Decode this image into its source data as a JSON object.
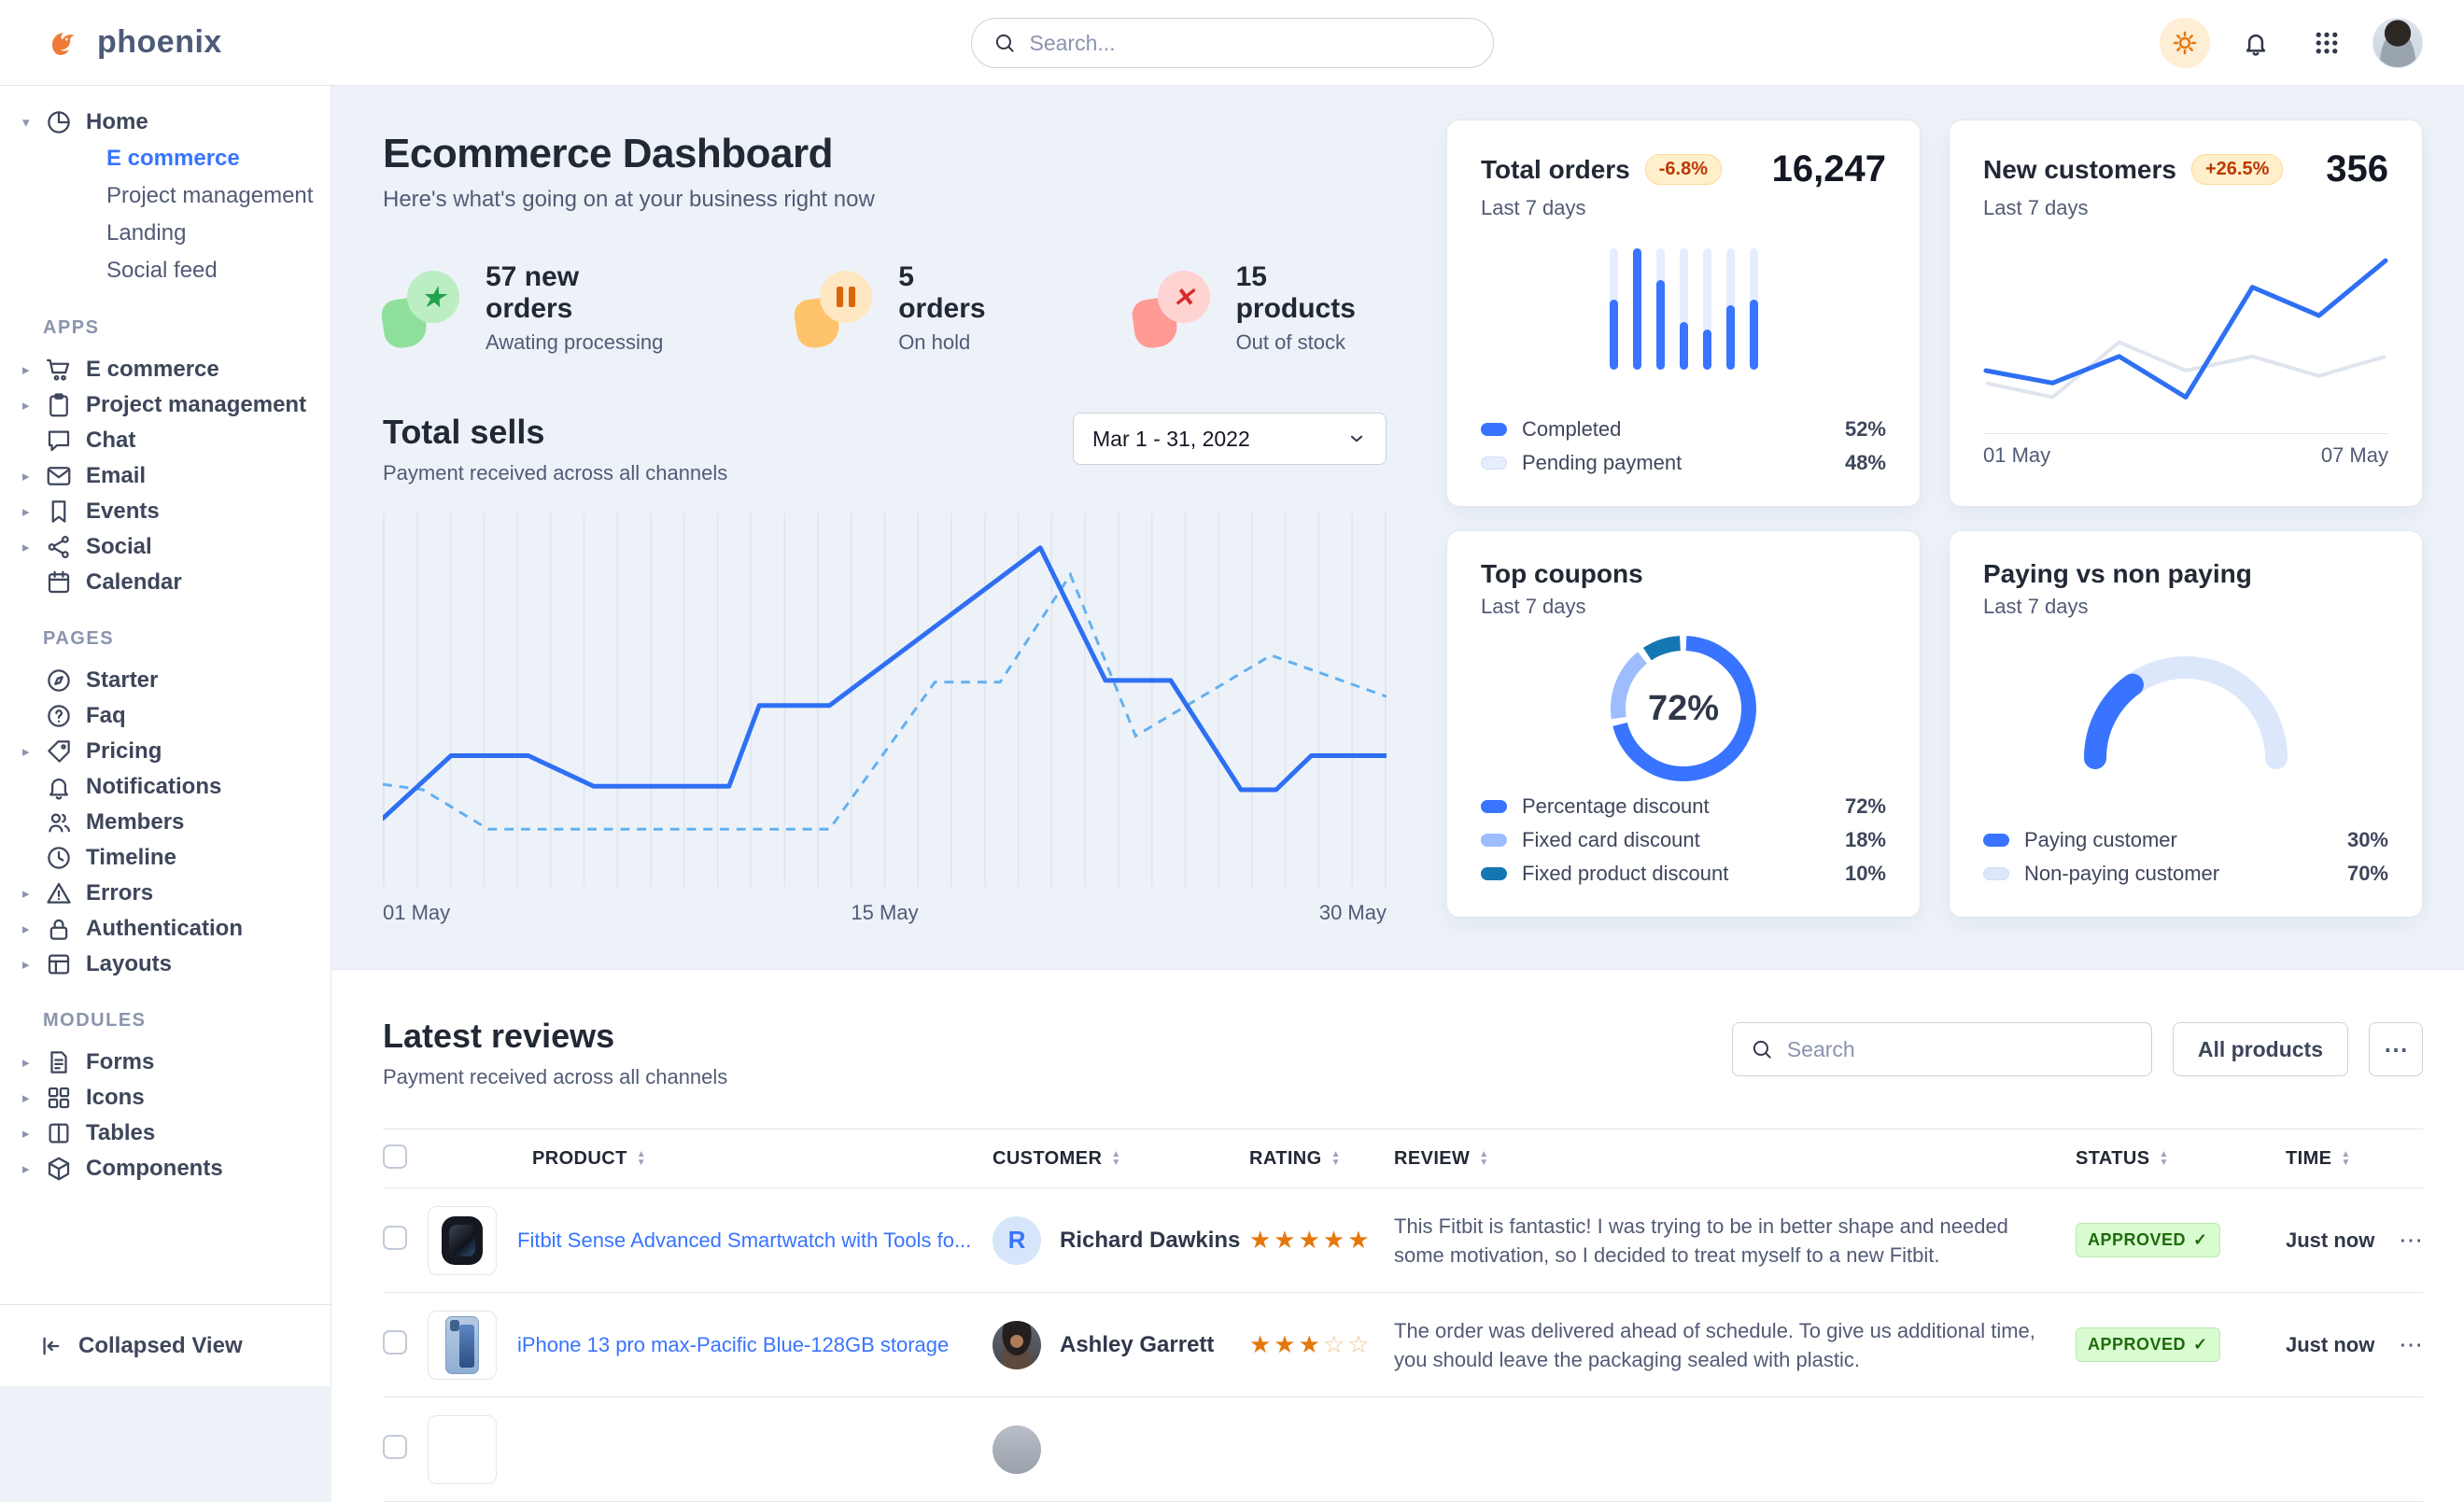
{
  "topnav": {
    "brand": "phoenix",
    "search_placeholder": "Search...",
    "icons": [
      "sun-icon",
      "bell-icon",
      "apps-grid-icon",
      "user-avatar"
    ]
  },
  "sidebar": {
    "footer_label": "Collapsed View",
    "footer_icon": "collapse-left-icon",
    "groups": [
      {
        "label": "",
        "items": [
          {
            "icon": "pie-chart",
            "label": "Home",
            "caret": "expanded",
            "children": [
              {
                "label": "E commerce",
                "active": true
              },
              {
                "label": "Project management",
                "active": false
              },
              {
                "label": "Landing",
                "active": false
              },
              {
                "label": "Social feed",
                "active": false
              }
            ]
          }
        ]
      },
      {
        "label": "APPS",
        "items": [
          {
            "icon": "cart",
            "label": "E commerce",
            "caret": "collapsed"
          },
          {
            "icon": "clipboard",
            "label": "Project management",
            "caret": "collapsed"
          },
          {
            "icon": "chat",
            "label": "Chat"
          },
          {
            "icon": "mail",
            "label": "Email",
            "caret": "collapsed"
          },
          {
            "icon": "bookmark",
            "label": "Events",
            "caret": "collapsed"
          },
          {
            "icon": "share",
            "label": "Social",
            "caret": "collapsed"
          },
          {
            "icon": "calendar",
            "label": "Calendar"
          }
        ]
      },
      {
        "label": "PAGES",
        "items": [
          {
            "icon": "compass",
            "label": "Starter"
          },
          {
            "icon": "question-circle",
            "label": "Faq"
          },
          {
            "icon": "tag",
            "label": "Pricing",
            "caret": "collapsed"
          },
          {
            "icon": "bell",
            "label": "Notifications"
          },
          {
            "icon": "users",
            "label": "Members"
          },
          {
            "icon": "clock",
            "label": "Timeline"
          },
          {
            "icon": "warning-triangle",
            "label": "Errors",
            "caret": "collapsed"
          },
          {
            "icon": "lock",
            "label": "Authentication",
            "caret": "collapsed"
          },
          {
            "icon": "layout",
            "label": "Layouts",
            "caret": "collapsed"
          }
        ]
      },
      {
        "label": "MODULES",
        "items": [
          {
            "icon": "file-text",
            "label": "Forms",
            "caret": "collapsed"
          },
          {
            "icon": "grid",
            "label": "Icons",
            "caret": "collapsed"
          },
          {
            "icon": "columns",
            "label": "Tables",
            "caret": "collapsed"
          },
          {
            "icon": "cube",
            "label": "Components",
            "caret": "collapsed"
          }
        ]
      }
    ]
  },
  "hero": {
    "title": "Ecommerce Dashboard",
    "subtitle": "Here's what's going on at your business right now",
    "stats": [
      {
        "value": "57 new orders",
        "label": "Awating processing",
        "variant": "green",
        "glyph": "star"
      },
      {
        "value": "5 orders",
        "label": "On hold",
        "variant": "orange",
        "glyph": "pause"
      },
      {
        "value": "15 products",
        "label": "Out of stock",
        "variant": "red",
        "glyph": "x"
      }
    ]
  },
  "total_sells": {
    "title": "Total sells",
    "subtitle": "Payment received across all channels",
    "range_label": "Mar 1 - 31, 2022",
    "x_labels": [
      "01 May",
      "15 May",
      "30 May"
    ],
    "grid_lines": 31,
    "colors": {
      "solid": "#2e6ff3",
      "dashed": "#64b0f0",
      "grid": "#e2e7ef"
    },
    "series": {
      "solid": [
        [
          0,
          0.83
        ],
        [
          0.068,
          0.655
        ],
        [
          0.145,
          0.655
        ],
        [
          0.21,
          0.74
        ],
        [
          0.345,
          0.74
        ],
        [
          0.375,
          0.515
        ],
        [
          0.445,
          0.515
        ],
        [
          0.655,
          0.075
        ],
        [
          0.72,
          0.445
        ],
        [
          0.785,
          0.445
        ],
        [
          0.855,
          0.75
        ],
        [
          0.89,
          0.75
        ],
        [
          0.925,
          0.655
        ],
        [
          1,
          0.655
        ]
      ],
      "dashed": [
        [
          0,
          0.735
        ],
        [
          0.04,
          0.75
        ],
        [
          0.105,
          0.86
        ],
        [
          0.445,
          0.86
        ],
        [
          0.55,
          0.45
        ],
        [
          0.615,
          0.45
        ],
        [
          0.685,
          0.15
        ],
        [
          0.75,
          0.6
        ],
        [
          0.885,
          0.375
        ],
        [
          1,
          0.49
        ]
      ]
    }
  },
  "cards": {
    "orders": {
      "title": "Total orders",
      "badge": "-6.8%",
      "value": "16,247",
      "period": "Last 7 days",
      "bars": [
        0.58,
        1,
        0.74,
        0.39,
        0.33,
        0.53,
        0.58
      ],
      "colors": {
        "fill": "#3874ff",
        "track": "#e5edff"
      },
      "legend": [
        {
          "label": "Completed",
          "value": "52%",
          "color": "#3874ff"
        },
        {
          "label": "Pending payment",
          "value": "48%",
          "color": "#e5edff"
        }
      ]
    },
    "customers": {
      "title": "New customers",
      "badge": "+26.5%",
      "value": "356",
      "period": "Last 7 days",
      "x_labels": [
        "01 May",
        "07 May"
      ],
      "colors": {
        "current": "#2e6ff3",
        "previous": "#dfe5ee"
      },
      "series": {
        "current": [
          0.7,
          0.77,
          0.62,
          0.85,
          0.23,
          0.39,
          0.08
        ],
        "previous": [
          0.77,
          0.85,
          0.54,
          0.7,
          0.62,
          0.73,
          0.62
        ]
      }
    },
    "coupons": {
      "title": "Top coupons",
      "period": "Last 7 days",
      "center_label": "72%",
      "segments": [
        {
          "label": "Percentage discount",
          "value": 72,
          "display": "72%",
          "color": "#3874ff"
        },
        {
          "label": "Fixed card discount",
          "value": 18,
          "display": "18%",
          "color": "#9dbdff"
        },
        {
          "label": "Fixed product discount",
          "value": 10,
          "display": "10%",
          "color": "#1577b2"
        }
      ]
    },
    "paying": {
      "title": "Paying vs non paying",
      "period": "Last 7 days",
      "segments": [
        {
          "label": "Paying customer",
          "value": 30,
          "display": "30%",
          "color": "#3874ff"
        },
        {
          "label": "Non-paying customer",
          "value": 70,
          "display": "70%",
          "color": "#dce7fb"
        }
      ]
    }
  },
  "reviews": {
    "title": "Latest reviews",
    "subtitle": "Payment received across all channels",
    "search_placeholder": "Search",
    "all_products_label": "All products",
    "more_label": "⋯",
    "columns": [
      "PRODUCT",
      "CUSTOMER",
      "RATING",
      "REVIEW",
      "STATUS",
      "TIME"
    ],
    "rows": [
      {
        "product": "Fitbit Sense Advanced Smartwatch with Tools fo...",
        "thumb": "smartwatch",
        "customer": "Richard Dawkins",
        "avatar_type": "initial",
        "avatar_text": "R",
        "rating": 5,
        "rating_max": 5,
        "review": "This Fitbit is fantastic! I was trying to be in better shape and needed some motivation, so I decided to treat myself to a new Fitbit.",
        "status": "APPROVED",
        "status_check": "✓",
        "time": "Just now",
        "partial": false
      },
      {
        "product": "iPhone 13 pro max-Pacific Blue-128GB storage",
        "thumb": "iphone",
        "customer": "Ashley Garrett",
        "avatar_type": "photo-woman",
        "avatar_text": "",
        "rating": 3,
        "rating_max": 5,
        "review": "The order was delivered ahead of schedule. To give us additional time, you should leave the packaging sealed with plastic.",
        "status": "APPROVED",
        "status_check": "✓",
        "time": "Just now",
        "partial": false
      },
      {
        "product": "",
        "thumb": "blank",
        "customer": "",
        "avatar_type": "photo",
        "avatar_text": "",
        "rating": 0,
        "rating_max": 0,
        "review": "",
        "status": "",
        "status_check": "",
        "time": "",
        "partial": true
      }
    ]
  }
}
